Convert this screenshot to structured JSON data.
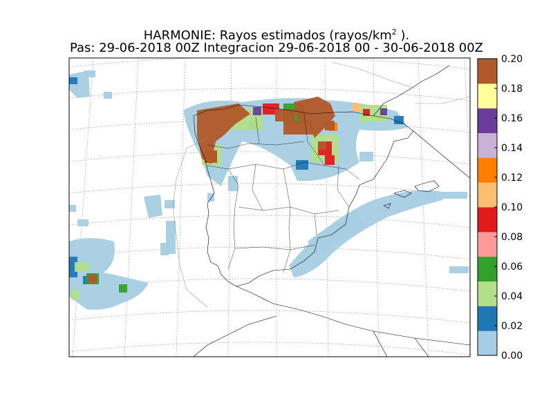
{
  "title": {
    "line1_prefix": "HARMONIE: Rayos estimados  (rayos/km",
    "line1_superscript": "2",
    "line1_suffix": " ).",
    "line2": "Pas: 29-06-2018 00Z Integracion 29-06-2018 00 - 30-06-2018 00Z"
  },
  "colorbar": {
    "min": 0.0,
    "max": 0.2,
    "ticks": [
      "0.00",
      "0.02",
      "0.04",
      "0.06",
      "0.08",
      "0.10",
      "0.12",
      "0.14",
      "0.16",
      "0.18",
      "0.20"
    ],
    "colors": [
      "#a6cee3",
      "#1f78b4",
      "#b2df8a",
      "#33a02c",
      "#fb9a99",
      "#e31a1c",
      "#fdbf6f",
      "#ff7f00",
      "#cab2d6",
      "#6a3d9a",
      "#ffff99",
      "#b15928"
    ]
  }
}
